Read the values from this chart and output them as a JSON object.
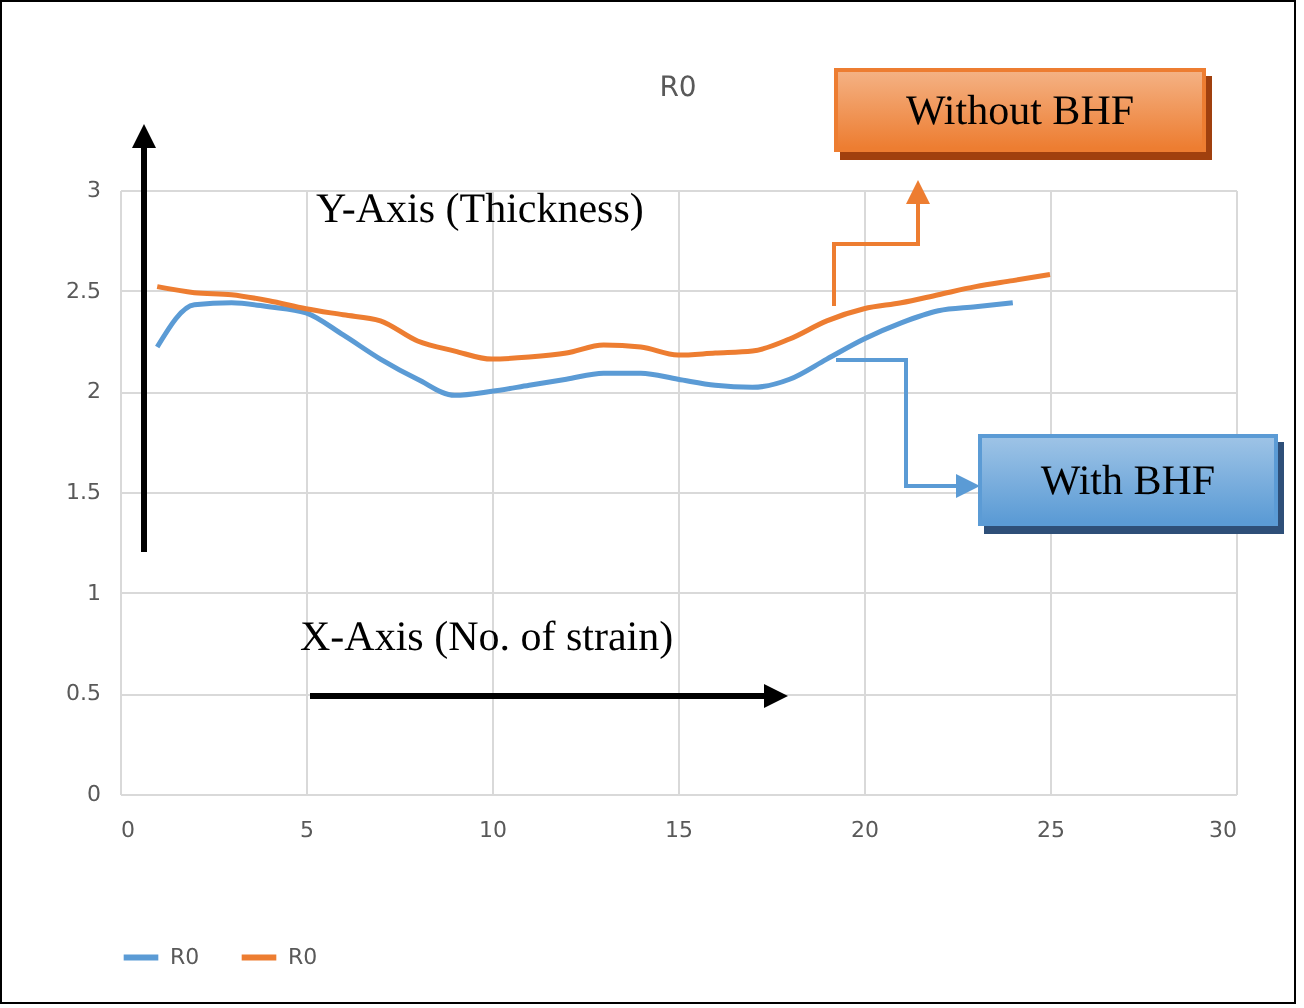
{
  "chart_data": {
    "type": "line",
    "title": "R0",
    "x": [
      1,
      2,
      3,
      4,
      5,
      6,
      7,
      8,
      9,
      10,
      11,
      12,
      13,
      14,
      15,
      16,
      17,
      18,
      19,
      20,
      21,
      22,
      23,
      24,
      25
    ],
    "series": [
      {
        "name": "R0",
        "color": "#5b9bd5",
        "values": [
          2.22,
          2.43,
          2.44,
          2.42,
          2.39,
          2.28,
          2.16,
          2.06,
          1.98,
          2.0,
          2.03,
          2.06,
          2.09,
          2.09,
          2.06,
          2.03,
          2.02,
          2.06,
          2.16,
          2.26,
          2.34,
          2.4,
          2.42,
          2.44,
          null
        ]
      },
      {
        "name": "R0",
        "color": "#ed7d31",
        "values": [
          2.52,
          2.49,
          2.48,
          2.45,
          2.41,
          2.38,
          2.35,
          2.25,
          2.2,
          2.16,
          2.17,
          2.19,
          2.23,
          2.22,
          2.18,
          2.19,
          2.2,
          2.26,
          2.35,
          2.41,
          2.44,
          2.48,
          2.52,
          2.55,
          2.58
        ]
      }
    ],
    "xlim": [
      0,
      30
    ],
    "xticks": [
      0,
      5,
      10,
      15,
      20,
      25,
      30
    ],
    "ylim": [
      0,
      3
    ],
    "yticks": [
      0,
      0.5,
      1,
      1.5,
      2,
      2.5,
      3
    ],
    "grid": true,
    "legend": "bottom",
    "marker": "none",
    "line_style": "solid",
    "annotations": [
      "Y-Axis (Thickness)",
      "X-Axis (No. of strain)",
      "Without BHF",
      "With BHF"
    ]
  }
}
